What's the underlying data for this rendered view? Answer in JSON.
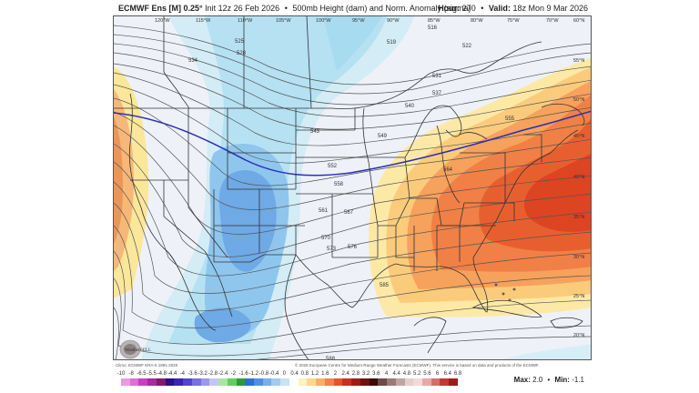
{
  "header": {
    "model": "ECMWF Ens [M] 0.25°",
    "init": "Init 12z 26 Feb 2026",
    "separator": "•",
    "product": "500mb Height (dam) and Norm. Anomaly (sigma)",
    "hour_label": "Hour:",
    "hour_value": "270",
    "valid_label": "Valid:",
    "valid_value": "18z Mon 9 Mar 2026"
  },
  "map": {
    "longitude_labels": [
      "120°W",
      "115°W",
      "110°W",
      "105°W",
      "100°W",
      "95°W",
      "90°W",
      "85°W",
      "80°W",
      "75°W",
      "70°W"
    ],
    "latitude_labels": [
      "60°N",
      "55°N",
      "50°N",
      "45°N",
      "40°N",
      "35°N",
      "30°N",
      "25°N",
      "20°N"
    ],
    "contour_labels": [
      "516",
      "519",
      "522",
      "525",
      "528",
      "531",
      "534",
      "537",
      "540",
      "543",
      "549",
      "552",
      "555",
      "558",
      "561",
      "564",
      "567",
      "570",
      "573",
      "576",
      "585",
      "588"
    ],
    "highlight_contour_color": "#2b2fb8",
    "logo_text": "WeatherBELL"
  },
  "footer": {
    "climo_credit": "Climo: ECMWF ERA-5 1991-2020",
    "copyright": "© 2026 European Centre for Medium-Range Weather Forecasts (ECMWF). This service is based on data and products of the ECMWF.",
    "max_label": "Max:",
    "max_value": "2.0",
    "min_label": "Min:",
    "min_value": "-1.1"
  },
  "colorbar": {
    "tick_labels": [
      "-10",
      "-8",
      "-6.5",
      "-5.5",
      "-4.8",
      "-4.4",
      "-4",
      "-3.6",
      "-3.2",
      "-2.8",
      "-2.4",
      "-2",
      "-1.6",
      "-1.2",
      "-0.8",
      "-0.4",
      "0",
      "0.4",
      "0.8",
      "1.2",
      "1.6",
      "2",
      "2.4",
      "2.8",
      "3.2",
      "3.6",
      "4",
      "4.4",
      "4.8",
      "5.2",
      "5.6",
      "6",
      "6.4",
      "6.8"
    ],
    "colors": [
      "#e99be0",
      "#de6fd6",
      "#c93ec0",
      "#a72a9e",
      "#82196f",
      "#2a0f86",
      "#3a23b5",
      "#5245d0",
      "#7770df",
      "#9a98ea",
      "#c4c6f2",
      "#a9e3a3",
      "#5fcf62",
      "#2f9a3c",
      "#2f6fd4",
      "#5090e0",
      "#7aaee8",
      "#a2cbee",
      "#c8e3f4",
      "#ffffff",
      "#fdf2c0",
      "#fbd98b",
      "#f7b068",
      "#f2824b",
      "#e4532f",
      "#c9311f",
      "#9f1d13",
      "#6b130d",
      "#3b0a06",
      "#6e4a44",
      "#9a7a74",
      "#c0a5a1",
      "#e4cfcc",
      "#f2d9d7",
      "#e7a9a5",
      "#d4706a",
      "#bf3a34",
      "#9c1c1a"
    ]
  }
}
